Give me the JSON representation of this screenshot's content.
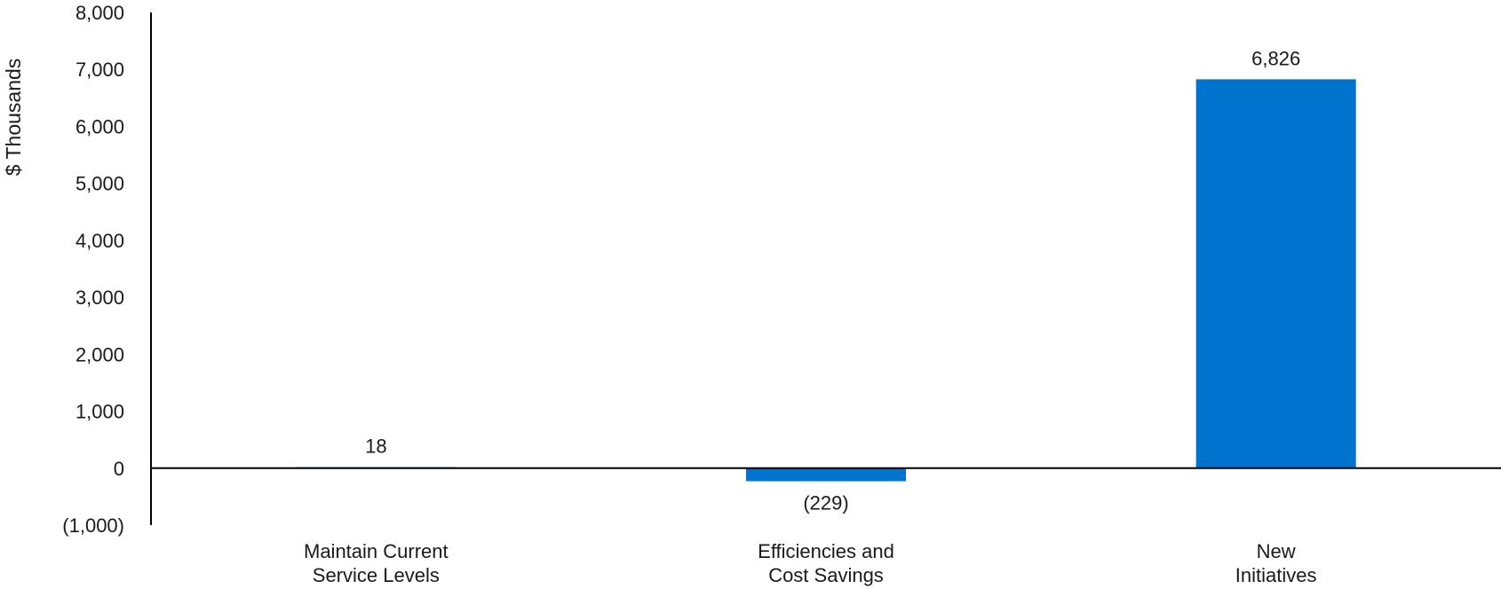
{
  "chart_data": {
    "type": "bar",
    "categories": [
      [
        "Maintain Current",
        "Service Levels"
      ],
      [
        "Efficiencies and",
        "Cost Savings"
      ],
      [
        "New",
        "Initiatives"
      ]
    ],
    "values": [
      18,
      -229,
      6826
    ],
    "data_labels": [
      "18",
      "(229)",
      "6,826"
    ],
    "ylabel": "$ Thousands",
    "xlabel": "",
    "title": "",
    "ylim": [
      -1000,
      8000
    ],
    "yticks": [
      -1000,
      0,
      1000,
      2000,
      3000,
      4000,
      5000,
      6000,
      7000,
      8000
    ],
    "ytick_labels": [
      "(1,000)",
      "0",
      "1,000",
      "2,000",
      "3,000",
      "4,000",
      "5,000",
      "6,000",
      "7,000",
      "8,000"
    ],
    "grid": false,
    "legend": "none",
    "bar_color": "#0073CF"
  }
}
